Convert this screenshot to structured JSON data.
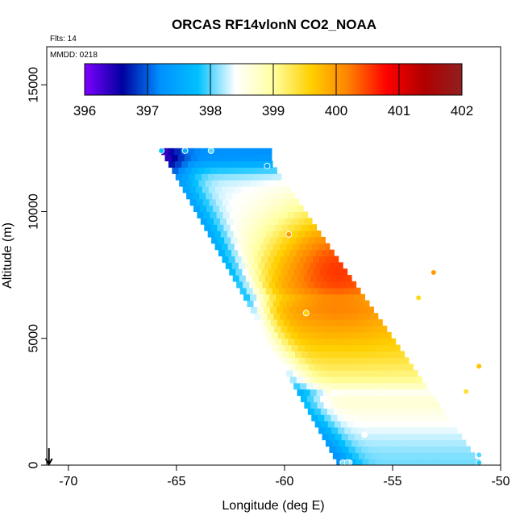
{
  "chart_data": {
    "type": "heatmap",
    "title": "ORCAS RF14vlonN CO2_NOAA",
    "subtitle_flights": "Flts: 14",
    "subtitle_date": "MMDD: 0218",
    "xlabel": "Longitude (deg E)",
    "ylabel": "Altitude (m)",
    "xlim": [
      -71,
      -50
    ],
    "ylim": [
      0,
      16500
    ],
    "x_ticks": [
      -70,
      -65,
      -60,
      -55,
      -50
    ],
    "y_ticks": [
      0,
      5000,
      10000,
      15000
    ],
    "colorbar": {
      "min": 396,
      "max": 402,
      "ticks": [
        396,
        397,
        398,
        399,
        400,
        401,
        402
      ],
      "stops": [
        "#7f00ff",
        "#0000a0",
        "#0090ff",
        "#00c0ff",
        "#ffffff",
        "#ffffa0",
        "#ffd000",
        "#ff8000",
        "#ff0000",
        "#b00000",
        "#902020"
      ]
    },
    "region": {
      "top_left": [
        -65.8,
        12400
      ],
      "top_right": [
        -60.6,
        11800
      ],
      "bottom_right": [
        -51.0,
        0
      ],
      "bottom_left": [
        -57.6,
        0
      ]
    },
    "field_note": "gridded CO2 mixing ratio (ppm) interpolated along flight track",
    "observation_points": [
      {
        "lon": -65.7,
        "alt": 12400,
        "co2": 397.8
      },
      {
        "lon": -64.6,
        "alt": 12400,
        "co2": 397.6
      },
      {
        "lon": -63.4,
        "alt": 12400,
        "co2": 398.0
      },
      {
        "lon": -60.8,
        "alt": 11800,
        "co2": 397.4
      },
      {
        "lon": -59.8,
        "alt": 9100,
        "co2": 400.0
      },
      {
        "lon": -53.1,
        "alt": 7600,
        "co2": 400.0
      },
      {
        "lon": -53.8,
        "alt": 6600,
        "co2": 399.5
      },
      {
        "lon": -59.0,
        "alt": 6000,
        "co2": 399.6
      },
      {
        "lon": -51.0,
        "alt": 3900,
        "co2": 399.7
      },
      {
        "lon": -51.6,
        "alt": 2900,
        "co2": 399.4
      },
      {
        "lon": -55.6,
        "alt": 2900,
        "co2": 398.6
      },
      {
        "lon": -58.0,
        "alt": 2900,
        "co2": 398.7
      },
      {
        "lon": -56.3,
        "alt": 1200,
        "co2": 398.4
      },
      {
        "lon": -51.0,
        "alt": 400,
        "co2": 398.0
      },
      {
        "lon": -51.0,
        "alt": 100,
        "co2": 397.9
      },
      {
        "lon": -57.0,
        "alt": 100,
        "co2": 398.1
      },
      {
        "lon": -57.3,
        "alt": 100,
        "co2": 398.1
      },
      {
        "lon": -57.1,
        "alt": 100,
        "co2": 398.1
      }
    ],
    "arrow_marker": {
      "lon": -70.9,
      "symbol": "down-arrow"
    }
  }
}
